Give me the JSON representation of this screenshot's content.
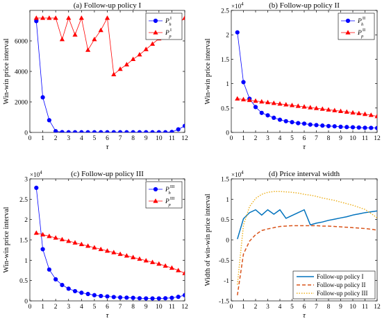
{
  "chart_data": [
    {
      "panel": "a",
      "type": "line",
      "title": "(a) Follow-up policy I",
      "xlabel": "τ",
      "ylabel": "Win-win price interval",
      "exponent": "",
      "xlim": [
        0,
        12
      ],
      "ylim": [
        0,
        8000
      ],
      "xticks": [
        0,
        1,
        2,
        3,
        4,
        5,
        6,
        7,
        8,
        9,
        10,
        11,
        12
      ],
      "yticks": [
        0,
        2000,
        4000,
        6000
      ],
      "ytick_labels": [
        "0",
        "2000",
        "4000",
        "6000"
      ],
      "legend_position": "top-right",
      "series": [
        {
          "name": "P_h^I",
          "legend_base": "P",
          "legend_sub": "h",
          "legend_sup": "I",
          "color": "#0000ff",
          "marker": "circle",
          "x": [
            0.5,
            1,
            1.5,
            2,
            2.5,
            3,
            3.5,
            4,
            4.5,
            5,
            5.5,
            6,
            6.5,
            7,
            7.5,
            8,
            8.5,
            9,
            9.5,
            10,
            10.5,
            11,
            11.5,
            12
          ],
          "y": [
            7300,
            2300,
            800,
            80,
            20,
            10,
            10,
            10,
            10,
            10,
            10,
            10,
            10,
            10,
            10,
            10,
            10,
            10,
            10,
            10,
            10,
            30,
            200,
            430
          ]
        },
        {
          "name": "P_p^I",
          "legend_base": "P",
          "legend_sub": "p",
          "legend_sup": "I",
          "color": "#ff0000",
          "marker": "triangle",
          "x": [
            0.5,
            1,
            1.5,
            2,
            2.5,
            3,
            3.5,
            4,
            4.5,
            5,
            5.5,
            6,
            6.5,
            7,
            7.5,
            8,
            8.5,
            9,
            9.5,
            10,
            10.5,
            11,
            11.5,
            12
          ],
          "y": [
            7500,
            7500,
            7500,
            7500,
            6100,
            7500,
            6400,
            7500,
            5400,
            6100,
            6700,
            7500,
            3800,
            4150,
            4450,
            4800,
            5100,
            5450,
            5800,
            6150,
            6450,
            6800,
            7150,
            7500
          ]
        }
      ]
    },
    {
      "panel": "b",
      "type": "line",
      "title": "(b) Follow-up policy II",
      "xlabel": "τ",
      "ylabel": "Win-win price interval",
      "exponent": "4",
      "xlim": [
        0,
        12
      ],
      "ylim": [
        0,
        25000
      ],
      "xticks": [
        0,
        1,
        2,
        3,
        4,
        5,
        6,
        7,
        8,
        9,
        10,
        11,
        12
      ],
      "yticks": [
        0,
        5000,
        10000,
        15000,
        20000,
        25000
      ],
      "ytick_labels": [
        "0",
        "0.5",
        "1",
        "1.5",
        "2",
        "2.5"
      ],
      "legend_position": "top-right",
      "series": [
        {
          "name": "P_h^II",
          "legend_base": "P",
          "legend_sub": "h",
          "legend_sup": "II",
          "color": "#0000ff",
          "marker": "circle",
          "x": [
            0.5,
            1,
            1.5,
            2,
            2.5,
            3,
            3.5,
            4,
            4.5,
            5,
            5.5,
            6,
            6.5,
            7,
            7.5,
            8,
            8.5,
            9,
            9.5,
            10,
            10.5,
            11,
            11.5,
            12
          ],
          "y": [
            20500,
            10300,
            6900,
            5200,
            4000,
            3500,
            3000,
            2600,
            2300,
            2100,
            1900,
            1800,
            1600,
            1500,
            1400,
            1300,
            1250,
            1150,
            1100,
            1050,
            1000,
            950,
            930,
            900
          ]
        },
        {
          "name": "P_p^II",
          "legend_base": "P",
          "legend_sub": "p",
          "legend_sup": "II",
          "color": "#ff0000",
          "marker": "triangle",
          "x": [
            0.5,
            1,
            1.5,
            2,
            2.5,
            3,
            3.5,
            4,
            4.5,
            5,
            5.5,
            6,
            6.5,
            7,
            7.5,
            8,
            8.5,
            9,
            9.5,
            10,
            10.5,
            11,
            11.5,
            12
          ],
          "y": [
            6900,
            6750,
            6600,
            6450,
            6300,
            6150,
            6000,
            5850,
            5700,
            5550,
            5400,
            5250,
            5100,
            4950,
            4800,
            4650,
            4500,
            4350,
            4200,
            4050,
            3900,
            3750,
            3550,
            3300
          ]
        }
      ]
    },
    {
      "panel": "c",
      "type": "line",
      "title": "(c) Follow-up policy III",
      "xlabel": "τ",
      "ylabel": "Win-win price interval",
      "exponent": "4",
      "xlim": [
        0,
        12
      ],
      "ylim": [
        0,
        30000
      ],
      "xticks": [
        0,
        1,
        2,
        3,
        4,
        5,
        6,
        7,
        8,
        9,
        10,
        11,
        12
      ],
      "yticks": [
        0,
        5000,
        10000,
        15000,
        20000,
        25000,
        30000
      ],
      "ytick_labels": [
        "0",
        "0.5",
        "1",
        "1.5",
        "2",
        "2.5",
        "3"
      ],
      "legend_position": "top-right",
      "series": [
        {
          "name": "P_h^III",
          "legend_base": "P",
          "legend_sub": "h",
          "legend_sup": "III",
          "color": "#0000ff",
          "marker": "circle",
          "x": [
            0.5,
            1,
            1.5,
            2,
            2.5,
            3,
            3.5,
            4,
            4.5,
            5,
            5.5,
            6,
            6.5,
            7,
            7.5,
            8,
            8.5,
            9,
            9.5,
            10,
            10.5,
            11,
            11.5,
            12
          ],
          "y": [
            27800,
            12700,
            7700,
            5300,
            3900,
            3000,
            2400,
            2000,
            1700,
            1400,
            1200,
            1100,
            950,
            850,
            800,
            750,
            650,
            600,
            600,
            600,
            650,
            750,
            1000,
            1400
          ]
        },
        {
          "name": "P_p^III",
          "legend_base": "P",
          "legend_sub": "p",
          "legend_sup": "III",
          "color": "#ff0000",
          "marker": "triangle",
          "x": [
            0.5,
            1,
            1.5,
            2,
            2.5,
            3,
            3.5,
            4,
            4.5,
            5,
            5.5,
            6,
            6.5,
            7,
            7.5,
            8,
            8.5,
            9,
            9.5,
            10,
            10.5,
            11,
            11.5,
            12
          ],
          "y": [
            16700,
            16300,
            15900,
            15500,
            15100,
            14700,
            14300,
            13900,
            13500,
            13100,
            12700,
            12300,
            11900,
            11500,
            11100,
            10700,
            10300,
            9900,
            9500,
            9100,
            8600,
            8100,
            7500,
            6800
          ]
        }
      ]
    },
    {
      "panel": "d",
      "type": "line",
      "title": "(d) Price interval width",
      "xlabel": "τ",
      "ylabel": "Width of win-win price interval",
      "exponent": "4",
      "xlim": [
        0,
        12
      ],
      "ylim": [
        -15000,
        15000
      ],
      "xticks": [
        0,
        1,
        2,
        3,
        4,
        5,
        6,
        7,
        8,
        9,
        10,
        11,
        12
      ],
      "yticks": [
        -15000,
        -10000,
        -5000,
        0,
        5000,
        10000,
        15000
      ],
      "ytick_labels": [
        "-1.5",
        "-1",
        "-0.5",
        "0",
        "0.5",
        "1",
        "1.5"
      ],
      "legend_position": "bottom-right",
      "series": [
        {
          "name": "Follow-up policy I",
          "color": "#0072bd",
          "dash": "solid",
          "x": [
            0.5,
            1,
            1.5,
            2,
            2.5,
            3,
            3.5,
            4,
            4.5,
            5,
            5.5,
            6,
            6.5,
            7,
            7.5,
            8,
            8.5,
            9,
            9.5,
            10,
            10.5,
            11,
            11.5,
            12
          ],
          "y": [
            200,
            5200,
            6700,
            7400,
            6100,
            7400,
            6300,
            7400,
            5300,
            6000,
            6700,
            7400,
            3700,
            4100,
            4400,
            4800,
            5100,
            5400,
            5700,
            6100,
            6400,
            6700,
            6900,
            7100
          ]
        },
        {
          "name": "Follow-up policy II",
          "color": "#d95319",
          "dash": "dashed",
          "x": [
            0.5,
            1,
            1.5,
            2,
            2.5,
            3,
            3.5,
            4,
            4.5,
            5,
            5.5,
            6,
            6.5,
            7,
            7.5,
            8,
            8.5,
            9,
            9.5,
            10,
            10.5,
            11,
            11.5,
            12
          ],
          "y": [
            -13600,
            -3500,
            -300,
            1300,
            2300,
            2700,
            3000,
            3300,
            3400,
            3500,
            3500,
            3500,
            3500,
            3500,
            3400,
            3400,
            3300,
            3200,
            3100,
            3000,
            2900,
            2800,
            2600,
            2400
          ]
        },
        {
          "name": "Follow-up policy III",
          "color": "#edb120",
          "dash": "dotted",
          "x": [
            0.5,
            1,
            1.5,
            2,
            2.5,
            3,
            3.5,
            4,
            4.5,
            5,
            5.5,
            6,
            6.5,
            7,
            7.5,
            8,
            8.5,
            9,
            9.5,
            10,
            10.5,
            11,
            11.5,
            12
          ],
          "y": [
            -11000,
            3600,
            8200,
            10200,
            11200,
            11700,
            11900,
            11900,
            11800,
            11700,
            11500,
            11200,
            11000,
            10700,
            10300,
            10000,
            9700,
            9300,
            8900,
            8500,
            8000,
            7500,
            6500,
            5400
          ]
        }
      ]
    }
  ]
}
